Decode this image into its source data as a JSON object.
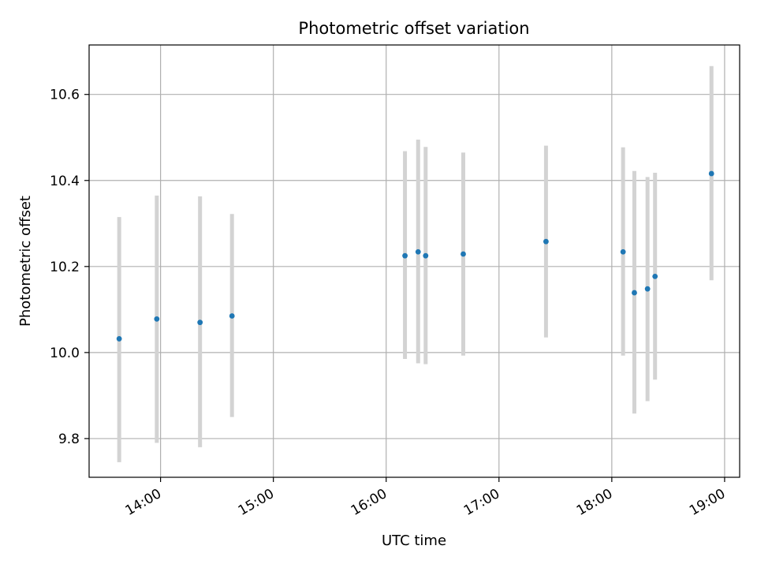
{
  "chart_data": {
    "type": "scatter",
    "title": "Photometric offset variation",
    "xlabel": "UTC time",
    "ylabel": "Photometric offset",
    "x_is_time": true,
    "xlim": [
      "13:22",
      "19:08"
    ],
    "ylim": [
      9.71,
      10.715
    ],
    "x_ticks": [
      "14:00",
      "15:00",
      "16:00",
      "17:00",
      "18:00",
      "19:00"
    ],
    "y_ticks": [
      9.8,
      10.0,
      10.2,
      10.4,
      10.6
    ],
    "y_tick_labels": [
      "9.8",
      "10.0",
      "10.2",
      "10.4",
      "10.6"
    ],
    "grid": true,
    "point_color": "#1f77b4",
    "errorbar_color": "#d3d3d3",
    "points": [
      {
        "x": "13:38",
        "y": 10.032,
        "ylow": 9.745,
        "yhigh": 10.315
      },
      {
        "x": "13:58",
        "y": 10.078,
        "ylow": 9.79,
        "yhigh": 10.365
      },
      {
        "x": "14:21",
        "y": 10.07,
        "ylow": 9.78,
        "yhigh": 10.363
      },
      {
        "x": "14:38",
        "y": 10.085,
        "ylow": 9.85,
        "yhigh": 10.322
      },
      {
        "x": "16:10",
        "y": 10.225,
        "ylow": 9.985,
        "yhigh": 10.468
      },
      {
        "x": "16:17",
        "y": 10.234,
        "ylow": 9.975,
        "yhigh": 10.495
      },
      {
        "x": "16:21",
        "y": 10.225,
        "ylow": 9.973,
        "yhigh": 10.478
      },
      {
        "x": "16:41",
        "y": 10.229,
        "ylow": 9.993,
        "yhigh": 10.465
      },
      {
        "x": "17:25",
        "y": 10.258,
        "ylow": 10.035,
        "yhigh": 10.481
      },
      {
        "x": "18:06",
        "y": 10.234,
        "ylow": 9.993,
        "yhigh": 10.477
      },
      {
        "x": "18:12",
        "y": 10.139,
        "ylow": 9.858,
        "yhigh": 10.422
      },
      {
        "x": "18:19",
        "y": 10.148,
        "ylow": 9.887,
        "yhigh": 10.408
      },
      {
        "x": "18:23",
        "y": 10.177,
        "ylow": 9.937,
        "yhigh": 10.418
      },
      {
        "x": "18:53",
        "y": 10.416,
        "ylow": 10.168,
        "yhigh": 10.666
      }
    ]
  }
}
